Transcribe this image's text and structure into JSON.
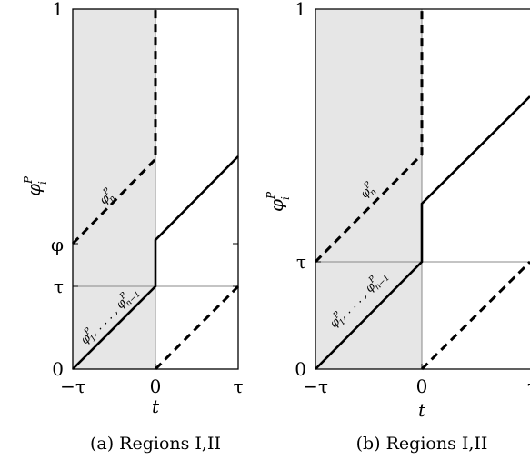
{
  "panels": [
    {
      "caption": "(a) Regions I,II",
      "ylabel": "φ",
      "ylabel_sup": "P",
      "ylabel_sub": "i",
      "xlabel": "t",
      "xticks": [
        "−τ",
        "0",
        "τ"
      ],
      "yticks": [
        "0",
        "τ",
        "φ",
        "1"
      ],
      "label_upper": "φ",
      "label_upper_sup": "P",
      "label_upper_sub": "n",
      "label_lower": "φ",
      "label_lower_sup": "P",
      "label_lower_sub": "1",
      "label_lower_mid": ", . . . , ",
      "label_lower_end": "φ",
      "label_lower_end_sup": "P",
      "label_lower_end_sub": "n−1"
    },
    {
      "caption": "(b) Regions I,II",
      "ylabel": "φ",
      "ylabel_sup": "P",
      "ylabel_sub": "i",
      "xlabel": "t",
      "xticks": [
        "−τ",
        "0",
        "τ"
      ],
      "yticks": [
        "0",
        "τ",
        "1"
      ],
      "label_upper": "φ",
      "label_upper_sup": "P",
      "label_upper_sub": "n",
      "label_lower": "φ",
      "label_lower_sup": "P",
      "label_lower_sub": "1",
      "label_lower_mid": ", . . . , ",
      "label_lower_end": "φ",
      "label_lower_end_sup": "P",
      "label_lower_end_sub": "n−1"
    }
  ]
}
